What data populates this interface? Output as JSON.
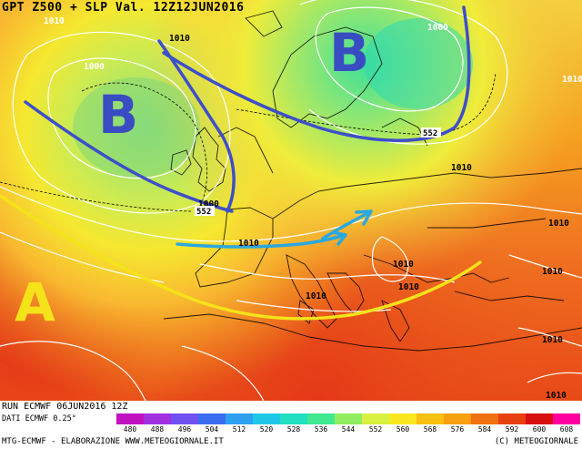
{
  "title": "GPT Z500 + SLP Val. 12Z12JUN2016",
  "footer": {
    "run": "RUN ECMWF 06JUN2016 12Z",
    "dati": "DATI ECMWF 0.25°",
    "credit_left": "MTG-ECMWF - ELABORAZIONE WWW.METEOGIORNALE.IT",
    "credit_right": "(C) METEOGIORNALE"
  },
  "pressure_centers": [
    {
      "letter": "B",
      "color": "#3a4cc2"
    },
    {
      "letter": "B",
      "color": "#3a4cc2"
    },
    {
      "letter": "A",
      "color": "#f5e31a"
    }
  ],
  "isobar_labels": [
    "1010",
    "1010",
    "1000",
    "1000",
    "1010",
    "1000",
    "1010",
    "1010",
    "1010",
    "1010",
    "1010",
    "1010",
    "1010",
    "1010",
    "1010"
  ],
  "height_labels": [
    "552",
    "552"
  ],
  "legend": {
    "values": [
      "480",
      "488",
      "496",
      "504",
      "512",
      "520",
      "528",
      "536",
      "544",
      "552",
      "560",
      "568",
      "576",
      "584",
      "592",
      "600",
      "608"
    ],
    "colors": [
      "#c010c0",
      "#a030e0",
      "#7050f0",
      "#3a6cf0",
      "#2ea0f0",
      "#20c8e8",
      "#20e0c0",
      "#40e890",
      "#90ee60",
      "#d8f040",
      "#f8e820",
      "#f8c010",
      "#f8a010",
      "#f07010",
      "#e84010",
      "#d81010",
      "#ff00a0"
    ]
  }
}
